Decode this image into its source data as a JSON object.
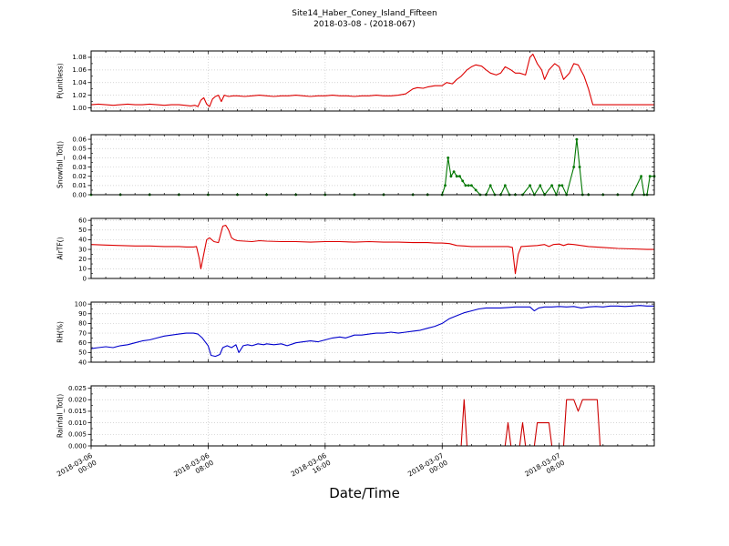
{
  "header": {
    "title_line1": "Site14_Haber_Coney_Island_Fifteen",
    "title_line2": "2018-03-08 - (2018-067)"
  },
  "xaxis": {
    "label": "Date/Time",
    "min": 0,
    "max": 38.5,
    "ticks": [
      {
        "value": 0,
        "line1": "2018-03-06",
        "line2": "00:00"
      },
      {
        "value": 8,
        "line1": "2018-03-06",
        "line2": "08:00"
      },
      {
        "value": 16,
        "line1": "2018-03-06",
        "line2": "16:00"
      },
      {
        "value": 24,
        "line1": "2018-03-07",
        "line2": "00:00"
      },
      {
        "value": 32,
        "line1": "2018-03-07",
        "line2": "08:00"
      }
    ]
  },
  "chart_data": [
    {
      "type": "line",
      "ylabel": "P(unitless)",
      "color": "#dd0000",
      "marker": false,
      "ylim": [
        0.995,
        1.09
      ],
      "yticks": [
        {
          "value": 1.0,
          "label": "1.00"
        },
        {
          "value": 1.02,
          "label": "1.02"
        },
        {
          "value": 1.04,
          "label": "1.04"
        },
        {
          "value": 1.06,
          "label": "1.06"
        },
        {
          "value": 1.08,
          "label": "1.08"
        }
      ],
      "x": [
        0,
        0.5,
        1,
        1.5,
        2,
        2.5,
        3,
        3.5,
        4,
        4.5,
        5,
        5.5,
        6,
        6.4,
        6.8,
        7.1,
        7.3,
        7.5,
        7.7,
        7.9,
        8.1,
        8.3,
        8.5,
        8.7,
        8.9,
        9.1,
        9.4,
        9.7,
        10,
        10.5,
        11,
        11.5,
        12,
        12.5,
        13,
        13.5,
        14,
        14.5,
        15,
        15.5,
        16,
        16.5,
        17,
        17.5,
        18,
        18.5,
        19,
        19.5,
        20,
        20.5,
        21,
        21.5,
        22,
        22.3,
        22.7,
        23,
        23.5,
        24,
        24.3,
        24.7,
        25,
        25.3,
        25.7,
        26,
        26.3,
        26.7,
        27,
        27.3,
        27.7,
        28,
        28.3,
        28.7,
        29,
        29.3,
        29.7,
        30,
        30.2,
        30.5,
        30.8,
        31,
        31.3,
        31.7,
        32,
        32.3,
        32.7,
        33,
        33.3,
        33.7,
        34,
        34.3,
        35,
        36,
        37,
        38,
        38.5
      ],
      "y": [
        1.005,
        1.006,
        1.005,
        1.004,
        1.005,
        1.006,
        1.005,
        1.005,
        1.006,
        1.005,
        1.004,
        1.005,
        1.005,
        1.004,
        1.003,
        1.004,
        1.002,
        1.012,
        1.016,
        1.006,
        1.002,
        1.014,
        1.018,
        1.02,
        1.01,
        1.02,
        1.018,
        1.019,
        1.019,
        1.018,
        1.019,
        1.02,
        1.019,
        1.018,
        1.019,
        1.019,
        1.02,
        1.019,
        1.018,
        1.019,
        1.019,
        1.02,
        1.019,
        1.019,
        1.018,
        1.019,
        1.019,
        1.02,
        1.019,
        1.019,
        1.02,
        1.022,
        1.03,
        1.032,
        1.031,
        1.033,
        1.035,
        1.035,
        1.04,
        1.038,
        1.045,
        1.05,
        1.06,
        1.065,
        1.068,
        1.066,
        1.06,
        1.055,
        1.052,
        1.055,
        1.065,
        1.06,
        1.055,
        1.055,
        1.052,
        1.08,
        1.085,
        1.07,
        1.06,
        1.045,
        1.06,
        1.07,
        1.065,
        1.045,
        1.055,
        1.07,
        1.068,
        1.05,
        1.03,
        1.005,
        1.005,
        1.005,
        1.005,
        1.005,
        1.005
      ]
    },
    {
      "type": "line",
      "ylabel": "Snowfall_Tot()",
      "color": "#007700",
      "marker": true,
      "ylim": [
        0,
        0.065
      ],
      "yticks": [
        {
          "value": 0.0,
          "label": "0.00"
        },
        {
          "value": 0.01,
          "label": "0.01"
        },
        {
          "value": 0.02,
          "label": "0.02"
        },
        {
          "value": 0.03,
          "label": "0.03"
        },
        {
          "value": 0.04,
          "label": "0.04"
        },
        {
          "value": 0.05,
          "label": "0.05"
        },
        {
          "value": 0.06,
          "label": "0.06"
        }
      ],
      "x": [
        0,
        2,
        4,
        6,
        8,
        10,
        12,
        14,
        16,
        18,
        20,
        22,
        23,
        24,
        24.2,
        24.4,
        24.6,
        24.8,
        25,
        25.2,
        25.4,
        25.6,
        25.8,
        26,
        26.3,
        26.6,
        27,
        27.3,
        27.6,
        28,
        28.3,
        28.6,
        29,
        29.5,
        30,
        30.3,
        30.7,
        31,
        31.5,
        31.8,
        32,
        32.2,
        32.5,
        33,
        33.2,
        33.4,
        33.6,
        34,
        35,
        36,
        37,
        37.6,
        37.8,
        38,
        38.2,
        38.5
      ],
      "y": [
        0,
        0,
        0,
        0,
        0,
        0,
        0,
        0,
        0,
        0,
        0,
        0,
        0,
        0,
        0.01,
        0.04,
        0.02,
        0.025,
        0.02,
        0.02,
        0.015,
        0.01,
        0.01,
        0.01,
        0.005,
        0,
        0,
        0.01,
        0,
        0,
        0.01,
        0,
        0,
        0,
        0.01,
        0,
        0.01,
        0,
        0.01,
        0,
        0.01,
        0.01,
        0,
        0.03,
        0.06,
        0.03,
        0,
        0,
        0,
        0,
        0,
        0.02,
        0,
        0,
        0.02,
        0.02
      ]
    },
    {
      "type": "line",
      "ylabel": "AirTF()",
      "color": "#dd0000",
      "marker": false,
      "ylim": [
        0,
        62
      ],
      "yticks": [
        {
          "value": 0,
          "label": "0"
        },
        {
          "value": 10,
          "label": "10"
        },
        {
          "value": 20,
          "label": "20"
        },
        {
          "value": 30,
          "label": "30"
        },
        {
          "value": 40,
          "label": "40"
        },
        {
          "value": 50,
          "label": "50"
        },
        {
          "value": 60,
          "label": "60"
        }
      ],
      "x": [
        0,
        1,
        2,
        3,
        4,
        5,
        6,
        6.5,
        7,
        7.2,
        7.4,
        7.5,
        7.7,
        7.9,
        8.1,
        8.4,
        8.7,
        9,
        9.2,
        9.4,
        9.6,
        9.8,
        10,
        10.5,
        11,
        11.5,
        12,
        13,
        14,
        15,
        16,
        17,
        18,
        19,
        20,
        21,
        22,
        23,
        23.5,
        24,
        24.5,
        25,
        25.5,
        26,
        27,
        28,
        28.5,
        28.8,
        29,
        29.2,
        29.4,
        30,
        30.5,
        31,
        31.3,
        31.6,
        32,
        32.3,
        32.6,
        33,
        33.5,
        34,
        34.5,
        35,
        36,
        37,
        38,
        38.5
      ],
      "y": [
        35,
        34.5,
        34,
        33.5,
        33.5,
        33,
        33,
        32.5,
        32.5,
        33,
        20,
        10,
        25,
        40,
        42,
        38,
        37,
        54,
        55,
        50,
        42,
        40,
        39,
        38.5,
        38,
        39,
        38.5,
        38,
        38,
        37.5,
        38,
        38,
        37.5,
        38,
        37.5,
        37.5,
        37,
        37,
        36.5,
        36.5,
        36,
        34,
        33.5,
        33,
        33,
        33,
        33,
        32,
        5,
        25,
        33,
        33.5,
        34,
        35,
        33,
        35,
        35.5,
        34,
        35.5,
        35,
        34,
        33,
        32.5,
        32,
        31,
        30.5,
        30,
        30
      ]
    },
    {
      "type": "line",
      "ylabel": "RH(%)",
      "color": "#0000cc",
      "marker": false,
      "ylim": [
        40,
        102
      ],
      "yticks": [
        {
          "value": 40,
          "label": "40"
        },
        {
          "value": 50,
          "label": "50"
        },
        {
          "value": 60,
          "label": "60"
        },
        {
          "value": 70,
          "label": "70"
        },
        {
          "value": 80,
          "label": "80"
        },
        {
          "value": 90,
          "label": "90"
        },
        {
          "value": 100,
          "label": "100"
        }
      ],
      "x": [
        0,
        0.5,
        1,
        1.5,
        2,
        2.5,
        3,
        3.5,
        4,
        4.5,
        5,
        5.5,
        6,
        6.5,
        7,
        7.3,
        7.6,
        8,
        8.2,
        8.5,
        8.8,
        9,
        9.3,
        9.6,
        9.9,
        10.1,
        10.4,
        10.7,
        11,
        11.4,
        11.8,
        12,
        12.5,
        13,
        13.4,
        13.8,
        14,
        14.5,
        15,
        15.5,
        16,
        16.5,
        17,
        17.4,
        17.8,
        18,
        18.5,
        19,
        19.5,
        20,
        20.5,
        21,
        21.5,
        22,
        22.5,
        23,
        23.5,
        24,
        24.5,
        25,
        25.5,
        26,
        26.5,
        27,
        27.5,
        28,
        28.5,
        29,
        29.5,
        30,
        30.3,
        30.6,
        31,
        31.5,
        32,
        32.5,
        33,
        33.5,
        34,
        34.5,
        35,
        35.5,
        36,
        36.5,
        37,
        37.5,
        38,
        38.5
      ],
      "y": [
        54,
        55,
        56,
        55,
        57,
        58,
        60,
        62,
        63,
        65,
        67,
        68,
        69,
        70,
        70,
        69,
        65,
        57,
        47,
        46,
        48,
        55,
        57,
        55,
        58,
        50,
        57,
        58,
        57,
        59,
        58,
        59,
        58,
        59,
        57,
        59,
        60,
        61,
        62,
        61,
        63,
        65,
        66,
        65,
        67,
        68,
        68,
        69,
        70,
        70,
        71,
        70,
        71,
        72,
        73,
        75,
        77,
        80,
        85,
        88,
        91,
        93,
        95,
        96,
        96,
        96,
        96.5,
        97,
        97,
        97,
        93,
        96,
        97,
        97,
        97.5,
        97,
        97.5,
        96,
        97,
        97.5,
        97,
        98,
        98,
        97.5,
        98,
        98.5,
        98,
        98
      ]
    },
    {
      "type": "line",
      "ylabel": "Rainfall_Tot()",
      "color": "#cc0000",
      "marker": false,
      "ylim": [
        0,
        0.026
      ],
      "yticks": [
        {
          "value": 0.0,
          "label": "0.000"
        },
        {
          "value": 0.005,
          "label": "0.005"
        },
        {
          "value": 0.01,
          "label": "0.010"
        },
        {
          "value": 0.015,
          "label": "0.015"
        },
        {
          "value": 0.02,
          "label": "0.020"
        },
        {
          "value": 0.025,
          "label": "0.025"
        }
      ],
      "x": [
        0,
        4,
        8,
        12,
        16,
        20,
        22,
        25.3,
        25.5,
        25.7,
        26,
        28,
        28.3,
        28.5,
        28.7,
        29.3,
        29.5,
        29.7,
        30.3,
        30.5,
        31,
        31.3,
        31.5,
        32.3,
        32.5,
        33,
        33.3,
        33.6,
        33.8,
        34,
        34.3,
        34.6,
        34.8,
        35,
        36,
        37,
        38,
        38.5
      ],
      "y": [
        0,
        0,
        0,
        0,
        0,
        0,
        0,
        0,
        0.02,
        0,
        0,
        0,
        0,
        0.01,
        0,
        0,
        0.01,
        0,
        0,
        0.01,
        0.01,
        0.01,
        0,
        0,
        0.02,
        0.02,
        0.015,
        0.02,
        0.02,
        0.02,
        0.02,
        0.02,
        0,
        0,
        0,
        0,
        0,
        0
      ]
    }
  ]
}
